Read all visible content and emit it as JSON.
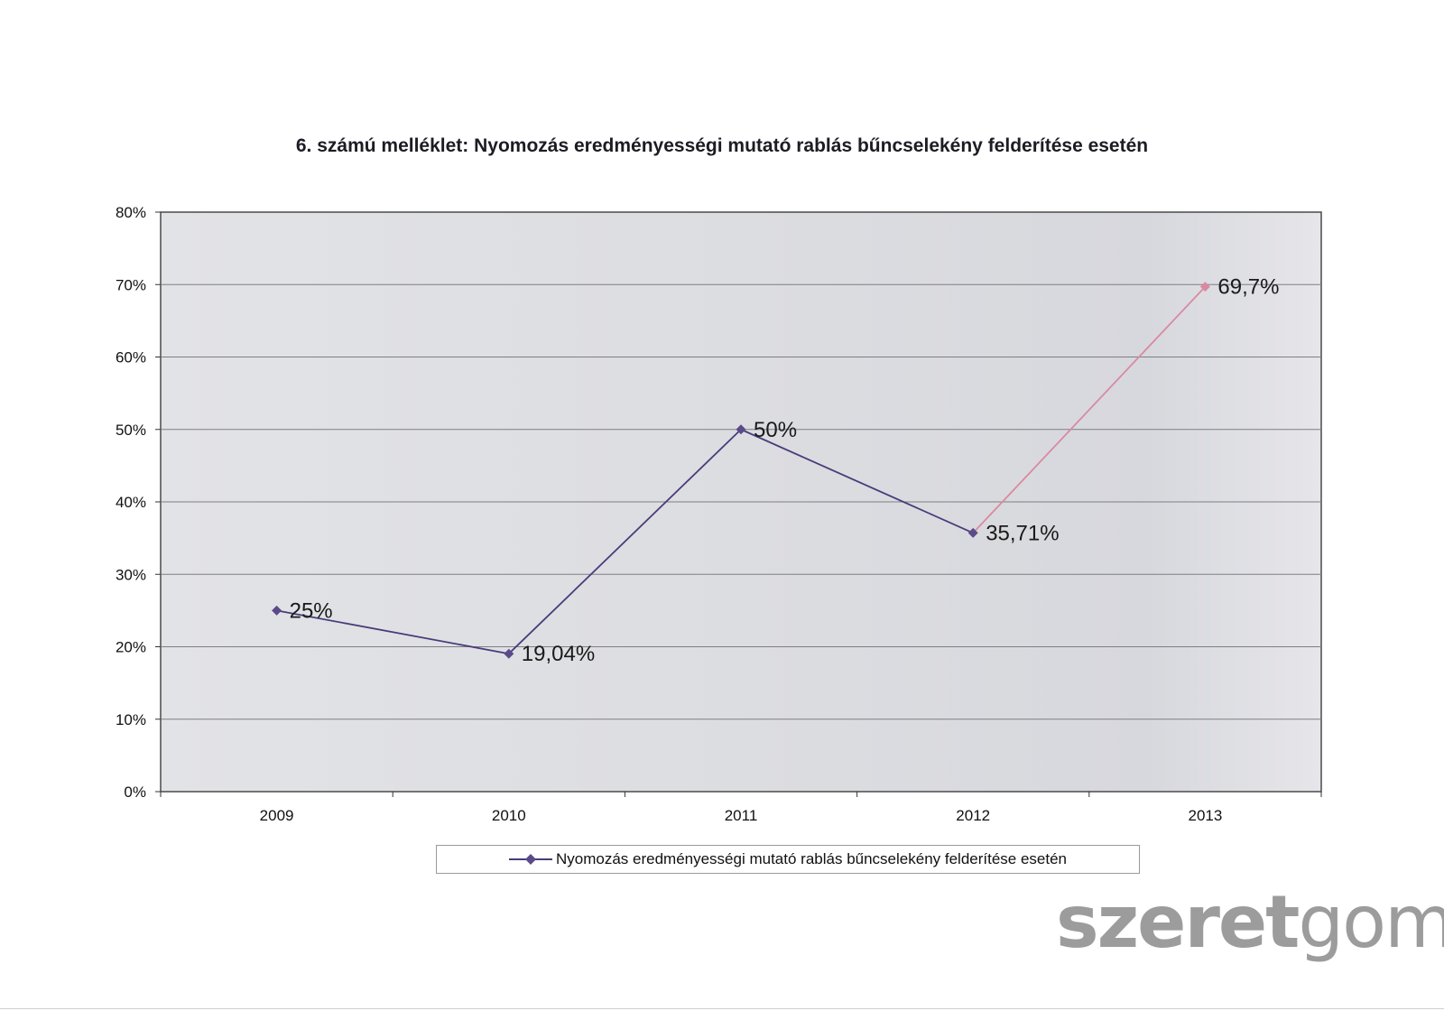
{
  "title": "6. számú melléklet: Nyomozás eredményességi mutató rablás bűncselekény felderítése esetén",
  "chart_data": {
    "type": "line",
    "title": "6. számú melléklet: Nyomozás eredményességi mutató rablás bűncselekény felderítése esetén",
    "categories": [
      "2009",
      "2010",
      "2011",
      "2012",
      "2013"
    ],
    "series": [
      {
        "name": "Nyomozás eredményességi mutató rablás bűncselekény felderítése esetén",
        "values": [
          25,
          19.04,
          50,
          35.71,
          69.7
        ],
        "labels": [
          "25%",
          "19,04%",
          "50%",
          "35,71%",
          "69,7%"
        ]
      }
    ],
    "yticks": [
      "0%",
      "10%",
      "20%",
      "30%",
      "40%",
      "50%",
      "60%",
      "70%",
      "80%"
    ],
    "ylim": [
      0,
      80
    ],
    "grid": true,
    "legend": "bottom",
    "colors": {
      "line": "#4a3c7a",
      "last_segment": "#d98aa0",
      "plot_bg": "#dcdde2"
    }
  },
  "legend": {
    "label": "Nyomozás eredményességi mutató rablás bűncselekény felderítése esetén"
  },
  "watermark": {
    "bold": "szeret",
    "light": "gom"
  }
}
